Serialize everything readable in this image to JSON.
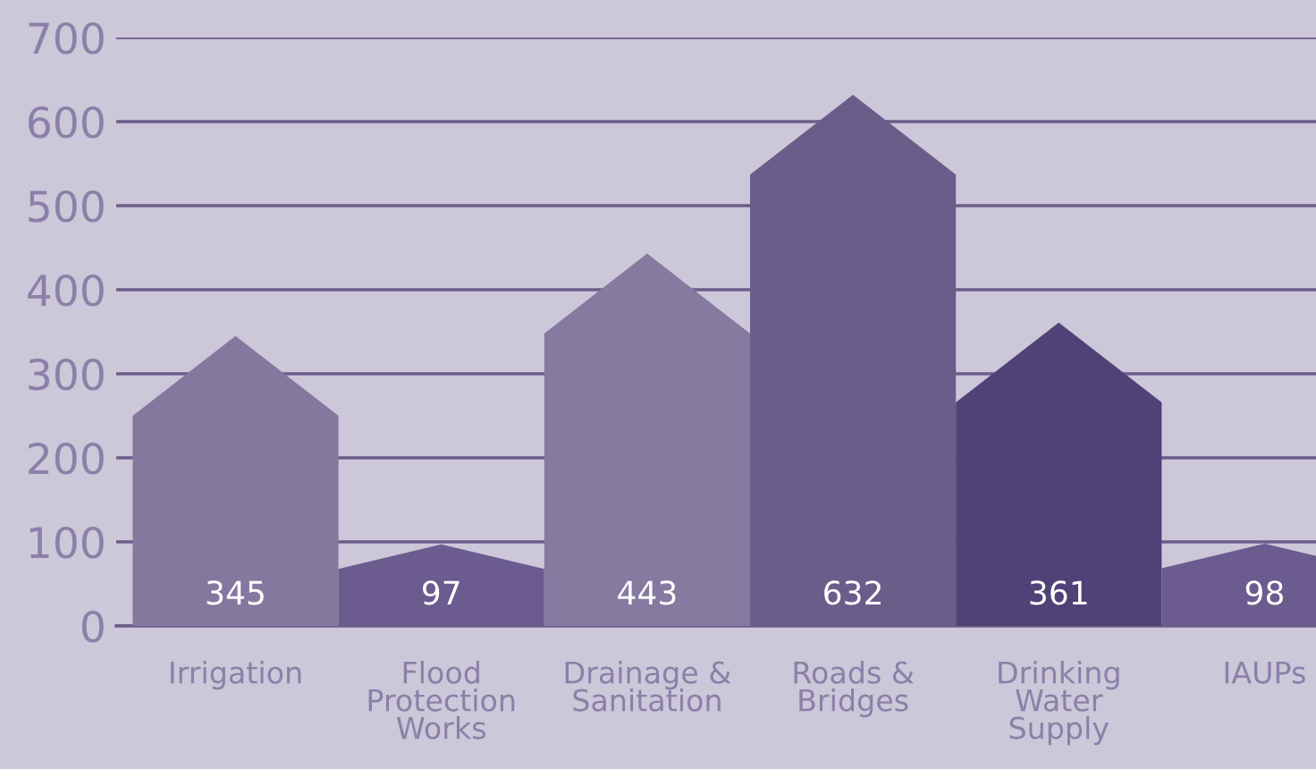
{
  "chart_data": {
    "type": "bar",
    "categories": [
      "Irrigation",
      "Flood\nProtection\nWorks",
      "Drainage &\nSanitation",
      "Roads &\nBridges",
      "Drinking\nWater\nSupply",
      "IAUPs"
    ],
    "values": [
      345,
      97,
      443,
      632,
      361,
      98
    ],
    "colors": [
      "#85789f",
      "#6b5b8e",
      "#857a9f",
      "#6b5d8a",
      "#4f4277",
      "#6b5b8e"
    ],
    "ylim": [
      0,
      700
    ],
    "yticks": [
      0,
      100,
      200,
      300,
      400,
      500,
      600,
      700
    ],
    "grid": "y",
    "data_labels": true
  }
}
